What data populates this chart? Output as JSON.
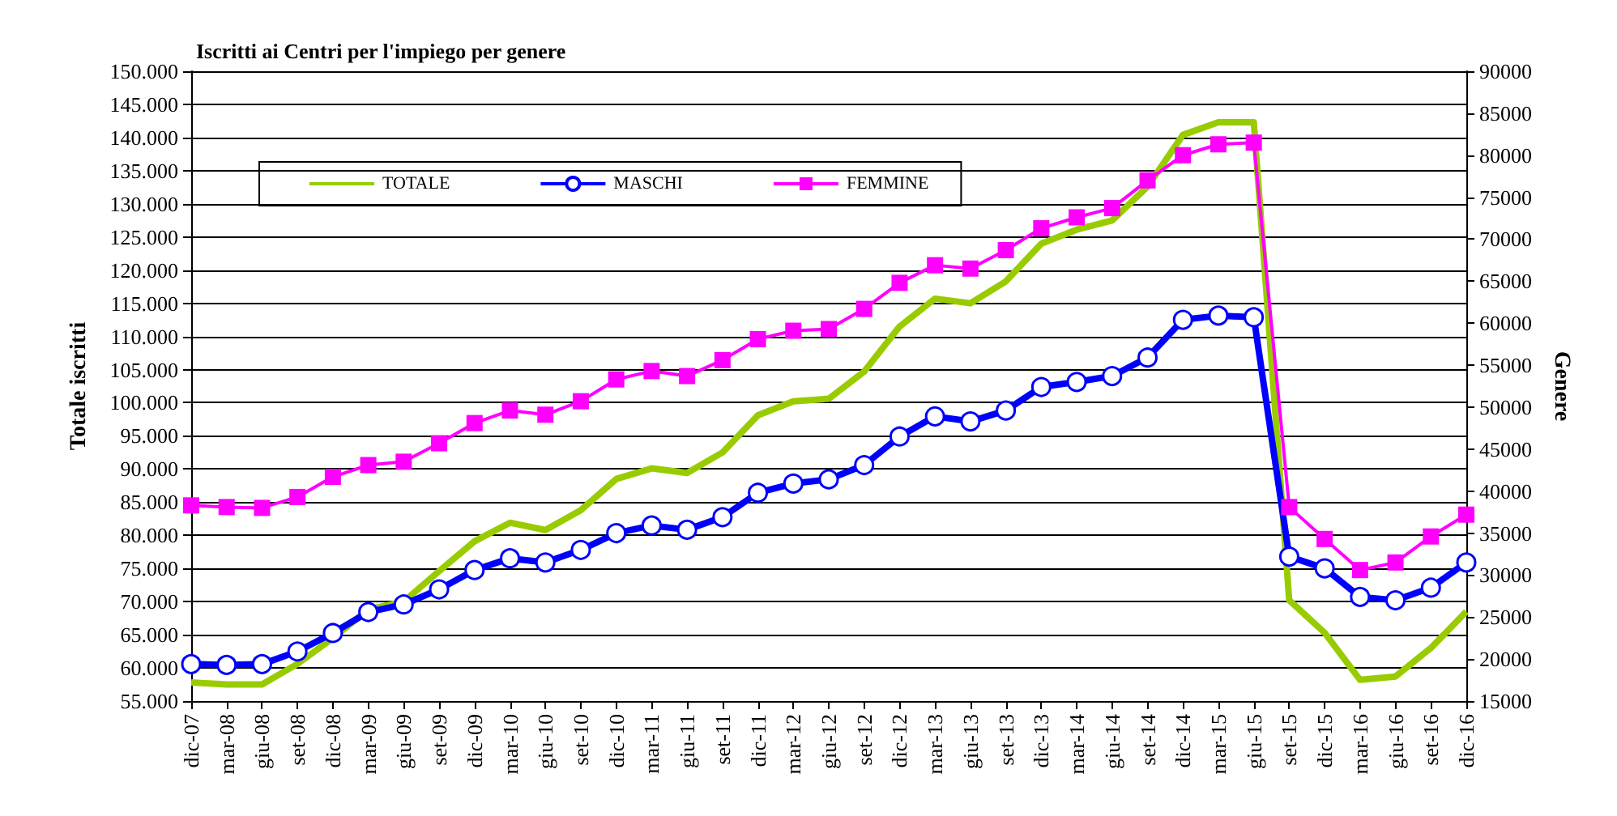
{
  "chart_data": {
    "type": "line",
    "title": "Iscritti ai Centri per l'impiego per genere",
    "ylabel": "Totale iscritti",
    "y2label": "Genere",
    "categories": [
      "dic-07",
      "mar-08",
      "giu-08",
      "set-08",
      "dic-08",
      "mar-09",
      "giu-09",
      "set-09",
      "dic-09",
      "mar-10",
      "giu-10",
      "set-10",
      "dic-10",
      "mar-11",
      "giu-11",
      "set-11",
      "dic-11",
      "mar-12",
      "giu-12",
      "set-12",
      "dic-12",
      "mar-13",
      "giu-13",
      "set-13",
      "dic-13",
      "mar-14",
      "giu-14",
      "set-14",
      "dic-14",
      "mar-15",
      "giu-15",
      "set-15",
      "dic-15",
      "mar-16",
      "giu-16",
      "set-16",
      "dic-16"
    ],
    "series": [
      {
        "name": "TOTALE",
        "color": "#99cc00",
        "marker": "none",
        "values": [
          57800,
          57500,
          57500,
          60600,
          64500,
          68800,
          70000,
          74600,
          79100,
          81900,
          80800,
          83800,
          88500,
          90100,
          89400,
          92500,
          98100,
          100200,
          100600,
          104700,
          111500,
          115700,
          115000,
          118300,
          124000,
          126100,
          127500,
          132600,
          140400,
          142300,
          142300,
          70200,
          65300,
          58200,
          58700,
          63000,
          68500
        ]
      },
      {
        "name": "MASCHI",
        "color": "#0000ff",
        "marker": "circle",
        "axis": "y2",
        "values": [
          19400,
          19300,
          19400,
          20900,
          23100,
          25600,
          26500,
          28300,
          30600,
          32000,
          31500,
          33000,
          35000,
          35900,
          35400,
          36900,
          39800,
          40900,
          41400,
          43100,
          46500,
          48900,
          48300,
          49600,
          52400,
          53000,
          53700,
          55900,
          60400,
          60900,
          60700,
          32200,
          30800,
          27400,
          27000,
          28500,
          31500
        ]
      },
      {
        "name": "FEMMINE",
        "color": "#ff00ff",
        "marker": "square",
        "axis": "y2",
        "values": [
          38300,
          38100,
          38000,
          39300,
          41700,
          43100,
          43500,
          45700,
          48100,
          49600,
          49100,
          50700,
          53300,
          54300,
          53700,
          55600,
          58100,
          59100,
          59300,
          61700,
          64800,
          66900,
          66500,
          68700,
          71300,
          72600,
          73700,
          77000,
          80000,
          81300,
          81500,
          38100,
          34300,
          30600,
          31500,
          34600,
          37200
        ]
      }
    ],
    "ylim": [
      55000,
      150000
    ],
    "yticks": [
      {
        "value": 55000,
        "label": "55.000"
      },
      {
        "value": 60000,
        "label": "60.000"
      },
      {
        "value": 65000,
        "label": "65.000"
      },
      {
        "value": 70000,
        "label": "70.000"
      },
      {
        "value": 75000,
        "label": "75.000"
      },
      {
        "value": 80000,
        "label": "80.000"
      },
      {
        "value": 85000,
        "label": "85.000"
      },
      {
        "value": 90000,
        "label": "90.000"
      },
      {
        "value": 95000,
        "label": "95.000"
      },
      {
        "value": 100000,
        "label": "100.000"
      },
      {
        "value": 105000,
        "label": "105.000"
      },
      {
        "value": 110000,
        "label": "110.000"
      },
      {
        "value": 115000,
        "label": "115.000"
      },
      {
        "value": 120000,
        "label": "120.000"
      },
      {
        "value": 125000,
        "label": "125.000"
      },
      {
        "value": 130000,
        "label": "130.000"
      },
      {
        "value": 135000,
        "label": "135.000"
      },
      {
        "value": 140000,
        "label": "140.000"
      },
      {
        "value": 145000,
        "label": "145.000"
      },
      {
        "value": 150000,
        "label": "150.000"
      }
    ],
    "y2lim": [
      15000,
      90000
    ],
    "y2ticks": [
      15000,
      20000,
      25000,
      30000,
      35000,
      40000,
      45000,
      50000,
      55000,
      60000,
      65000,
      70000,
      75000,
      80000,
      85000,
      90000
    ],
    "grid": "y",
    "legend": "top left"
  }
}
